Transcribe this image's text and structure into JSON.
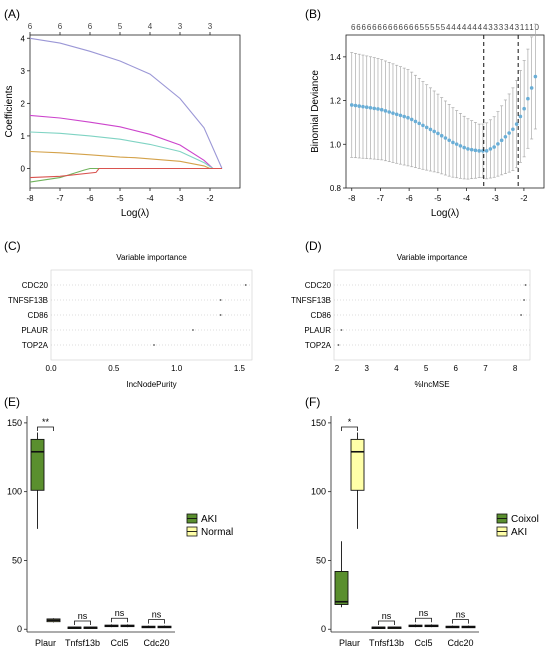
{
  "chart_data": [
    {
      "id": "A",
      "type": "line",
      "panel_label": "(A)",
      "xlabel": "Log(λ)",
      "ylabel": "Coefficients",
      "xlim": [
        -8,
        -1
      ],
      "ylim": [
        -0.6,
        4.1
      ],
      "x_ticks": [
        -8,
        -7,
        -6,
        -5,
        -4,
        -3,
        -2
      ],
      "y_ticks": [
        0,
        1,
        2,
        3,
        4
      ],
      "top_axis": {
        "positions": [
          -8,
          -7,
          -6,
          -5,
          -4,
          -3,
          -2
        ],
        "labels": [
          "6",
          "6",
          "6",
          "5",
          "4",
          "3",
          "3"
        ]
      },
      "series": [
        {
          "color": "#9b97d6",
          "x": [
            -8,
            -7,
            -6,
            -5,
            -4,
            -3,
            -2.2,
            -1.6
          ],
          "y": [
            4.0,
            3.85,
            3.6,
            3.3,
            2.9,
            2.15,
            1.25,
            0
          ]
        },
        {
          "color": "#cc44cc",
          "x": [
            -8,
            -7,
            -6,
            -5,
            -4,
            -3,
            -2.2,
            -1.9
          ],
          "y": [
            1.63,
            1.55,
            1.42,
            1.28,
            1.05,
            0.72,
            0.25,
            0
          ]
        },
        {
          "color": "#7fd3c3",
          "x": [
            -8,
            -7,
            -6,
            -5,
            -4,
            -3,
            -2.2,
            -1.9
          ],
          "y": [
            1.12,
            1.08,
            1.0,
            0.9,
            0.74,
            0.52,
            0.18,
            0
          ]
        },
        {
          "color": "#d4a24a",
          "x": [
            -8,
            -7,
            -6,
            -5,
            -4.5,
            -3,
            -2.2,
            -2.0
          ],
          "y": [
            0.52,
            0.48,
            0.42,
            0.35,
            0.33,
            0.22,
            0.08,
            0
          ]
        },
        {
          "color": "#70b35c",
          "x": [
            -8,
            -7,
            -6.2,
            -6,
            -1.6
          ],
          "y": [
            -0.42,
            -0.28,
            -0.05,
            0,
            0
          ]
        },
        {
          "color": "#d9534f",
          "x": [
            -8,
            -7,
            -5.8,
            -5.7,
            -1.6
          ],
          "y": [
            -0.28,
            -0.24,
            -0.12,
            0,
            0
          ]
        }
      ]
    },
    {
      "id": "B",
      "type": "scatter",
      "panel_label": "(B)",
      "xlabel": "Log(λ)",
      "ylabel": "Binomial Deviance",
      "xlim": [
        -8.2,
        -1.3
      ],
      "ylim": [
        0.8,
        1.5
      ],
      "x_ticks": [
        -8,
        -7,
        -6,
        -5,
        -4,
        -3,
        -2
      ],
      "y_ticks": [
        0.8,
        1.0,
        1.2,
        1.4
      ],
      "top_axis": {
        "text": "666666666666655555444444443333431110"
      },
      "vlines": [
        -3.4,
        -2.2
      ],
      "points_color": "#6aaed6",
      "errorbar_color": "#aaaaaa",
      "curve": {
        "x": [
          -8.0,
          -7.0,
          -6.0,
          -5.0,
          -4.5,
          -4.0,
          -3.6,
          -3.3,
          -3.0,
          -2.6,
          -2.3,
          -2.0,
          -1.8,
          -1.6
        ],
        "y": [
          1.18,
          1.16,
          1.12,
          1.05,
          1.01,
          0.98,
          0.97,
          0.97,
          0.99,
          1.04,
          1.08,
          1.16,
          1.23,
          1.31
        ]
      },
      "halfwidth": {
        "x": [
          -8.0,
          -6.0,
          -4.0,
          -3.5,
          -3.0,
          -2.0,
          -1.6
        ],
        "y": [
          0.24,
          0.22,
          0.14,
          0.12,
          0.14,
          0.22,
          0.24
        ]
      }
    },
    {
      "id": "C",
      "type": "scatter",
      "panel_label": "(C)",
      "title": "Variable importance",
      "xlabel": "IncNodePurity",
      "categories": [
        "CDC20",
        "TNFSF13B",
        "CD86",
        "PLAUR",
        "TOP2A"
      ],
      "values": [
        1.55,
        1.35,
        1.35,
        1.13,
        0.82
      ],
      "xlim": [
        0,
        1.6
      ],
      "x_ticks": [
        0.0,
        0.5,
        1.0,
        1.5
      ],
      "x_tick_labels": [
        "0.0",
        "0.5",
        "1.0",
        "1.5"
      ]
    },
    {
      "id": "D",
      "type": "scatter",
      "panel_label": "(D)",
      "title": "Variable importance",
      "xlabel": "%IncMSE",
      "categories": [
        "CDC20",
        "TNFSF13B",
        "CD86",
        "PLAUR",
        "TOP2A"
      ],
      "values": [
        8.35,
        8.3,
        8.2,
        2.15,
        2.05
      ],
      "xlim": [
        1.9,
        8.5
      ],
      "x_ticks": [
        2,
        3,
        4,
        5,
        6,
        7,
        8
      ],
      "x_tick_labels": [
        "2",
        "3",
        "4",
        "5",
        "6",
        "7",
        "8"
      ]
    },
    {
      "id": "E",
      "type": "box",
      "panel_label": "(E)",
      "categories": [
        "Plaur",
        "Tnfsf13b",
        "Ccl5",
        "Cdc20"
      ],
      "ylim": [
        -2,
        155
      ],
      "y_ticks": [
        0,
        50,
        100,
        150
      ],
      "legend": [
        {
          "name": "AKI",
          "color": "#5a8f2e"
        },
        {
          "name": "Normal",
          "color": "#ffffa8"
        }
      ],
      "boxes": [
        {
          "category": "Plaur",
          "series": "AKI",
          "whisker_low": 73,
          "q1": 101,
          "median": 129,
          "q3": 138,
          "whisker_high": 143
        },
        {
          "category": "Plaur",
          "series": "Normal",
          "whisker_low": 5,
          "q1": 5.5,
          "median": 6.5,
          "q3": 7.5,
          "whisker_high": 8
        },
        {
          "category": "Tnfsf13b",
          "series": "AKI",
          "whisker_low": 0.8,
          "q1": 1,
          "median": 1.3,
          "q3": 1.6,
          "whisker_high": 1.8
        },
        {
          "category": "Tnfsf13b",
          "series": "Normal",
          "whisker_low": 0.8,
          "q1": 1,
          "median": 1.3,
          "q3": 1.6,
          "whisker_high": 1.8
        },
        {
          "category": "Ccl5",
          "series": "AKI",
          "whisker_low": 1.5,
          "q1": 2,
          "median": 2.5,
          "q3": 3,
          "whisker_high": 3.5
        },
        {
          "category": "Ccl5",
          "series": "Normal",
          "whisker_low": 1.5,
          "q1": 2,
          "median": 2.5,
          "q3": 3,
          "whisker_high": 3.5
        },
        {
          "category": "Cdc20",
          "series": "AKI",
          "whisker_low": 1,
          "q1": 1.4,
          "median": 1.8,
          "q3": 2.2,
          "whisker_high": 2.6
        },
        {
          "category": "Cdc20",
          "series": "Normal",
          "whisker_low": 1,
          "q1": 1.4,
          "median": 1.8,
          "q3": 2.2,
          "whisker_high": 2.6
        }
      ],
      "significance": [
        {
          "category": "Plaur",
          "label": "**",
          "y": 147
        },
        {
          "category": "Tnfsf13b",
          "label": "ns",
          "y": 6
        },
        {
          "category": "Ccl5",
          "label": "ns",
          "y": 8
        },
        {
          "category": "Cdc20",
          "label": "ns",
          "y": 7
        }
      ]
    },
    {
      "id": "F",
      "type": "box",
      "panel_label": "(F)",
      "categories": [
        "Plaur",
        "Tnfsf13b",
        "Ccl5",
        "Cdc20"
      ],
      "ylim": [
        -2,
        155
      ],
      "y_ticks": [
        0,
        50,
        100,
        150
      ],
      "legend": [
        {
          "name": "Coixol",
          "color": "#5a8f2e"
        },
        {
          "name": "AKI",
          "color": "#ffffa8"
        }
      ],
      "boxes": [
        {
          "category": "Plaur",
          "series": "Coixol",
          "whisker_low": 16,
          "q1": 18,
          "median": 20,
          "q3": 42,
          "whisker_high": 64
        },
        {
          "category": "Plaur",
          "series": "AKI",
          "whisker_low": 73,
          "q1": 101,
          "median": 129,
          "q3": 138,
          "whisker_high": 143
        },
        {
          "category": "Tnfsf13b",
          "series": "Coixol",
          "whisker_low": 0.8,
          "q1": 1,
          "median": 1.3,
          "q3": 1.6,
          "whisker_high": 1.8
        },
        {
          "category": "Tnfsf13b",
          "series": "AKI",
          "whisker_low": 0.8,
          "q1": 1,
          "median": 1.3,
          "q3": 1.6,
          "whisker_high": 1.8
        },
        {
          "category": "Ccl5",
          "series": "Coixol",
          "whisker_low": 1.5,
          "q1": 2,
          "median": 2.5,
          "q3": 3,
          "whisker_high": 3.5
        },
        {
          "category": "Ccl5",
          "series": "AKI",
          "whisker_low": 1.5,
          "q1": 2,
          "median": 2.5,
          "q3": 3,
          "whisker_high": 3.5
        },
        {
          "category": "Cdc20",
          "series": "Coixol",
          "whisker_low": 1,
          "q1": 1.4,
          "median": 1.8,
          "q3": 2.2,
          "whisker_high": 2.6
        },
        {
          "category": "Cdc20",
          "series": "AKI",
          "whisker_low": 1,
          "q1": 1.4,
          "median": 1.8,
          "q3": 2.2,
          "whisker_high": 2.6
        }
      ],
      "significance": [
        {
          "category": "Plaur",
          "label": "*",
          "y": 147
        },
        {
          "category": "Tnfsf13b",
          "label": "ns",
          "y": 6
        },
        {
          "category": "Ccl5",
          "label": "ns",
          "y": 8
        },
        {
          "category": "Cdc20",
          "label": "ns",
          "y": 7
        }
      ]
    }
  ]
}
